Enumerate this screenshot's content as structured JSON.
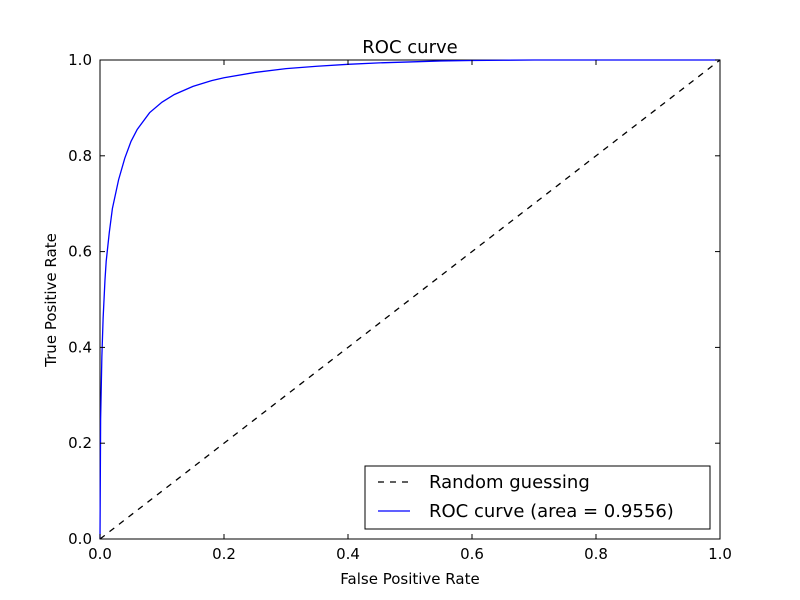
{
  "chart_data": {
    "type": "line",
    "title": "ROC curve",
    "xlabel": "False Positive Rate",
    "ylabel": "True Positive Rate",
    "xlim": [
      0.0,
      1.0
    ],
    "ylim": [
      0.0,
      1.0
    ],
    "x_ticks": [
      "0.0",
      "0.2",
      "0.4",
      "0.6",
      "0.8",
      "1.0"
    ],
    "y_ticks": [
      "0.0",
      "0.2",
      "0.4",
      "0.6",
      "0.8",
      "1.0"
    ],
    "grid": false,
    "legend_position": "lower-right",
    "series": [
      {
        "name": "Random guessing",
        "style": "dashed",
        "color": "#000000",
        "x": [
          0.0,
          1.0
        ],
        "y": [
          0.0,
          1.0
        ]
      },
      {
        "name": "ROC curve (area = 0.9556)",
        "style": "solid",
        "color": "#0000ff",
        "x": [
          0.0,
          0.001,
          0.003,
          0.005,
          0.008,
          0.01,
          0.015,
          0.02,
          0.03,
          0.04,
          0.05,
          0.06,
          0.08,
          0.1,
          0.12,
          0.15,
          0.18,
          0.2,
          0.25,
          0.3,
          0.35,
          0.4,
          0.45,
          0.5,
          0.55,
          0.6,
          0.65,
          0.7,
          0.75,
          0.8,
          0.9,
          1.0
        ],
        "y": [
          0.0,
          0.25,
          0.38,
          0.46,
          0.54,
          0.58,
          0.64,
          0.69,
          0.75,
          0.795,
          0.83,
          0.855,
          0.89,
          0.912,
          0.928,
          0.945,
          0.957,
          0.963,
          0.974,
          0.982,
          0.987,
          0.991,
          0.994,
          0.996,
          0.998,
          0.999,
          0.9995,
          1.0,
          1.0,
          1.0,
          1.0,
          1.0
        ]
      }
    ]
  }
}
